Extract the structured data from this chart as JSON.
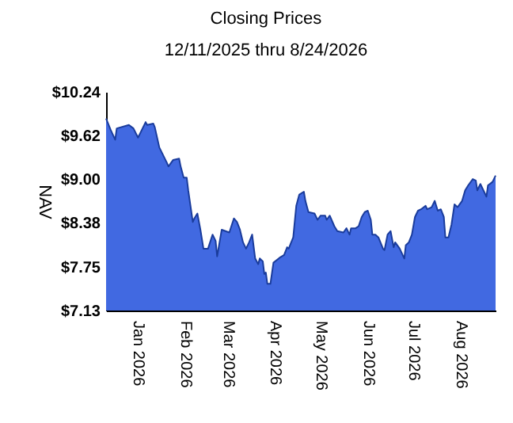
{
  "chart_data": {
    "type": "area",
    "title": "Closing Prices",
    "subtitle": "12/11/2025 thru 8/24/2026",
    "ylabel": "NAV",
    "x": [
      "2025-12-11",
      "2025-12-14",
      "2025-12-17",
      "2025-12-18",
      "2025-12-26",
      "2025-12-29",
      "2026-01-01",
      "2026-01-06",
      "2026-01-07",
      "2026-01-11",
      "2026-01-12",
      "2026-01-15",
      "2026-01-20",
      "2026-01-21",
      "2026-01-24",
      "2026-01-28",
      "2026-01-29",
      "2026-01-31",
      "2026-02-02",
      "2026-02-03",
      "2026-02-06",
      "2026-02-07",
      "2026-02-09",
      "2026-02-11",
      "2026-02-13",
      "2026-02-16",
      "2026-02-19",
      "2026-02-21",
      "2026-02-22",
      "2026-02-25",
      "2026-03-02",
      "2026-03-05",
      "2026-03-07",
      "2026-03-09",
      "2026-03-11",
      "2026-03-13",
      "2026-03-15",
      "2026-03-17",
      "2026-03-19",
      "2026-03-21",
      "2026-03-22",
      "2026-03-24",
      "2026-03-25",
      "2026-03-26",
      "2026-03-27",
      "2026-03-29",
      "2026-03-31",
      "2026-04-04",
      "2026-04-07",
      "2026-04-09",
      "2026-04-10",
      "2026-04-13",
      "2026-04-15",
      "2026-04-17",
      "2026-04-20",
      "2026-04-21",
      "2026-04-23",
      "2026-04-27",
      "2026-04-29",
      "2026-05-01",
      "2026-05-04",
      "2026-05-05",
      "2026-05-07",
      "2026-05-10",
      "2026-05-12",
      "2026-05-16",
      "2026-05-18",
      "2026-05-20",
      "2026-05-21",
      "2026-05-24",
      "2026-05-26",
      "2026-05-28",
      "2026-05-30",
      "2026-06-01",
      "2026-06-03",
      "2026-06-04",
      "2026-06-06",
      "2026-06-08",
      "2026-06-11",
      "2026-06-12",
      "2026-06-14",
      "2026-06-16",
      "2026-06-18",
      "2026-06-19",
      "2026-06-22",
      "2026-06-25",
      "2026-06-26",
      "2026-06-28",
      "2026-06-30",
      "2026-07-02",
      "2026-07-04",
      "2026-07-06",
      "2026-07-09",
      "2026-07-10",
      "2026-07-13",
      "2026-07-15",
      "2026-07-17",
      "2026-07-19",
      "2026-07-21",
      "2026-07-22",
      "2026-07-24",
      "2026-07-26",
      "2026-07-28",
      "2026-07-30",
      "2026-08-02",
      "2026-08-04",
      "2026-08-06",
      "2026-08-09",
      "2026-08-11",
      "2026-08-12",
      "2026-08-14",
      "2026-08-16",
      "2026-08-18",
      "2026-08-19",
      "2026-08-22",
      "2026-08-24"
    ],
    "series": [
      {
        "color": "#4169e1",
        "values": [
          9.86,
          9.7,
          9.56,
          9.72,
          9.77,
          9.72,
          9.59,
          9.81,
          9.77,
          9.79,
          9.74,
          9.45,
          9.23,
          9.18,
          9.27,
          9.29,
          9.18,
          9.02,
          9.02,
          8.84,
          8.39,
          8.44,
          8.51,
          8.28,
          8.01,
          8.01,
          8.21,
          8.12,
          7.9,
          8.28,
          8.24,
          8.44,
          8.39,
          8.28,
          8.1,
          8.01,
          8.1,
          8.21,
          7.87,
          7.79,
          7.87,
          7.83,
          7.65,
          7.67,
          7.51,
          7.51,
          7.81,
          7.88,
          7.92,
          8.03,
          8.01,
          8.17,
          8.62,
          8.78,
          8.82,
          8.69,
          8.53,
          8.51,
          8.42,
          8.48,
          8.48,
          8.42,
          8.48,
          8.33,
          8.26,
          8.24,
          8.3,
          8.21,
          8.3,
          8.3,
          8.33,
          8.46,
          8.53,
          8.55,
          8.42,
          8.21,
          8.21,
          8.17,
          8.01,
          7.99,
          8.21,
          8.26,
          8.03,
          8.1,
          8.01,
          7.87,
          8.06,
          8.1,
          8.21,
          8.46,
          8.55,
          8.57,
          8.62,
          8.57,
          8.6,
          8.69,
          8.55,
          8.57,
          8.46,
          8.17,
          8.17,
          8.35,
          8.64,
          8.6,
          8.69,
          8.84,
          8.91,
          9.0,
          8.98,
          8.84,
          8.93,
          8.84,
          8.75,
          8.91,
          8.96,
          9.05
        ]
      }
    ],
    "xlim": [
      "2025-12-11",
      "2026-08-24"
    ],
    "xticks": [
      {
        "value": "2026-01-01",
        "label": "Jan 2026"
      },
      {
        "value": "2026-02-01",
        "label": "Feb 2026"
      },
      {
        "value": "2026-03-01",
        "label": "Mar 2026"
      },
      {
        "value": "2026-04-01",
        "label": "Apr 2026"
      },
      {
        "value": "2026-05-01",
        "label": "May 2026"
      },
      {
        "value": "2026-06-01",
        "label": "Jun 2026"
      },
      {
        "value": "2026-07-01",
        "label": "Jul 2026"
      },
      {
        "value": "2026-08-01",
        "label": "Aug 2026"
      }
    ],
    "ylim": [
      7.13,
      10.24
    ],
    "yticks": [
      {
        "value": 7.13,
        "label": "$7.13"
      },
      {
        "value": 7.75,
        "label": "$7.75"
      },
      {
        "value": 8.38,
        "label": "$8.38"
      },
      {
        "value": 9.0,
        "label": "$9.00"
      },
      {
        "value": 9.62,
        "label": "$9.62"
      },
      {
        "value": 10.24,
        "label": "$10.24"
      }
    ],
    "grid": false
  }
}
